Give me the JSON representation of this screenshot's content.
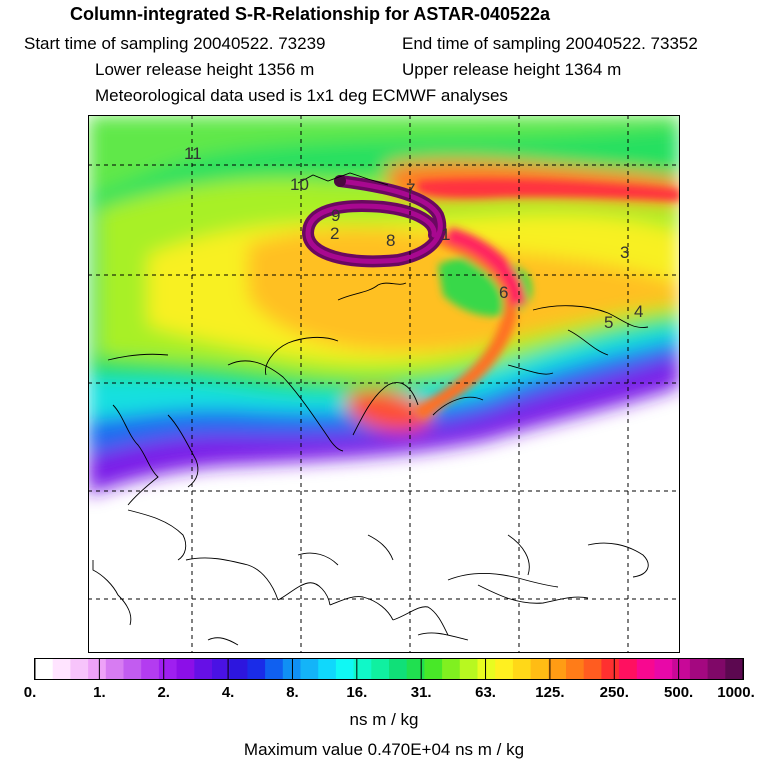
{
  "header": {
    "title": "Column-integrated S-R-Relationship for ASTAR-040522a",
    "start_time": "Start time of sampling 20040522. 73239",
    "end_time": "End time of sampling 20040522. 73352",
    "lower_height": "Lower release height 1356 m",
    "upper_height": "Upper release height 1364 m",
    "met_data": "Meteorological data used is 1x1 deg ECMWF analyses"
  },
  "map": {
    "track_labels": [
      {
        "text": "11"
      },
      {
        "text": "10"
      },
      {
        "text": "9"
      },
      {
        "text": "2"
      },
      {
        "text": "8"
      },
      {
        "text": "1"
      },
      {
        "text": "7"
      },
      {
        "text": "6"
      },
      {
        "text": "3"
      },
      {
        "text": "5"
      },
      {
        "text": "4"
      }
    ]
  },
  "colorbar": {
    "ticks": [
      "0.",
      "1.",
      "2.",
      "4.",
      "8.",
      "16.",
      "31.",
      "63.",
      "125.",
      "250.",
      "500.",
      "1000."
    ],
    "colors": [
      "#ffffff",
      "#ffe4ff",
      "#f7c4fb",
      "#eea2f8",
      "#d77cf2",
      "#c25cf0",
      "#b33cf0",
      "#9f1ff0",
      "#8c0fe8",
      "#6610e6",
      "#4a12e4",
      "#2d16de",
      "#1a2ce8",
      "#1060f0",
      "#1090f4",
      "#14b4f8",
      "#10d8fc",
      "#10f8f4",
      "#10f8c8",
      "#10f0a0",
      "#10e078",
      "#20e050",
      "#48e828",
      "#80f020",
      "#b8f820",
      "#e8fc20",
      "#fff020",
      "#ffd818",
      "#ffbc14",
      "#ff9c14",
      "#ff7c18",
      "#ff5c20",
      "#ff3030",
      "#ff1060",
      "#f80890",
      "#e808a8",
      "#c80898",
      "#a40880",
      "#800868",
      "#5c0850"
    ],
    "units": "ns m / kg",
    "max_value": "Maximum value  0.470E+04 ns m / kg"
  }
}
